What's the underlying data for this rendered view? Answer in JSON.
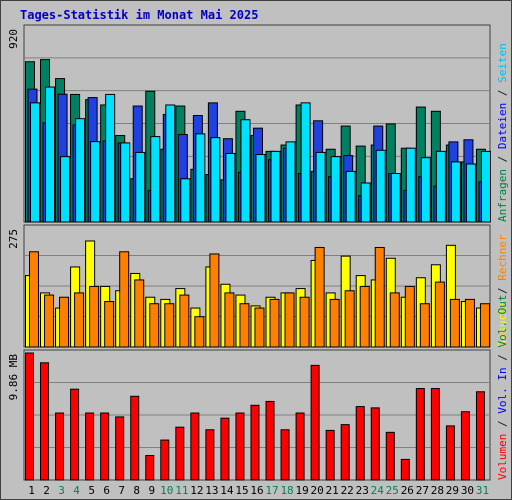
{
  "chart_data": {
    "type": "bar",
    "title": "Tages-Statistik im Monat Mai 2025",
    "days": [
      "1",
      "2",
      "3",
      "4",
      "5",
      "6",
      "7",
      "8",
      "9",
      "10",
      "11",
      "12",
      "13",
      "14",
      "15",
      "16",
      "17",
      "18",
      "19",
      "20",
      "21",
      "22",
      "23",
      "24",
      "25",
      "26",
      "27",
      "28",
      "29",
      "30",
      "31"
    ],
    "weekend_days": [
      "3",
      "4",
      "10",
      "11",
      "17",
      "18",
      "24",
      "25",
      "31"
    ],
    "panels": [
      {
        "id": "hits",
        "ymax_label": "920",
        "ymax": 920,
        "side_labels": [
          {
            "text": "Anfragen",
            "color": "#008040"
          },
          {
            "text": "Dateien",
            "color": "#0000ff"
          },
          {
            "text": "Seiten",
            "color": "#00c0e0"
          }
        ],
        "separators_color": "#404040",
        "series": [
          {
            "key": "Anfragen",
            "color": "#008060",
            "values": [
              760,
              770,
              680,
              605,
              580,
              555,
              410,
              205,
              620,
              345,
              550,
              250,
              225,
              200,
              525,
              410,
              335,
              365,
              555,
              240,
              345,
              455,
              360,
              365,
              465,
              350,
              545,
              525,
              365,
              285,
              345
            ]
          },
          {
            "key": "Dateien",
            "color": "#2040e0",
            "values": [
              630,
              470,
              606,
              460,
              590,
              385,
              375,
              550,
              150,
              510,
              415,
              505,
              565,
              395,
              235,
              445,
              295,
              350,
              230,
              480,
              215,
              315,
              125,
              455,
              230,
              150,
              215,
              170,
              380,
              390,
              190
            ]
          },
          {
            "key": "Seiten",
            "color": "#00e0ff",
            "values": [
              565,
              640,
              310,
              490,
              381,
              605,
              375,
              330,
              405,
              555,
              205,
              418,
              400,
              325,
              485,
              320,
              335,
              380,
              565,
              330,
              310,
              240,
              185,
              340,
              230,
              350,
              305,
              335,
              285,
              275,
              335
            ]
          }
        ]
      },
      {
        "id": "visits",
        "ymax_label": "275",
        "ymax": 275,
        "side_labels": [
          {
            "text": "Besuche",
            "color": "#ffff00"
          },
          {
            "text": "Rechner",
            "color": "#ff8000"
          }
        ],
        "series": [
          {
            "key": "Besuche",
            "color": "#ffff00",
            "values": [
              165,
              125,
              90,
              185,
              245,
              140,
              130,
              170,
              115,
              110,
              135,
              90,
              185,
              145,
              120,
              95,
              115,
              125,
              135,
              200,
              125,
              210,
              165,
              155,
              205,
              115,
              160,
              190,
              235,
              105,
              90
            ]
          },
          {
            "key": "Rechner",
            "color": "#ff8000",
            "values": [
              220,
              120,
              115,
              125,
              140,
              105,
              220,
              155,
              100,
              100,
              120,
              70,
              215,
              125,
              100,
              90,
              110,
              125,
              115,
              230,
              110,
              130,
              140,
              230,
              125,
              140,
              100,
              150,
              110,
              110,
              100
            ]
          }
        ]
      },
      {
        "id": "volume",
        "ymax_label": "9.86 MB",
        "ymax": 9.86,
        "side_labels": [
          {
            "text": "Volumen",
            "color": "#ff0000"
          },
          {
            "text": "Vol. In",
            "color": "#0000ff"
          },
          {
            "text": "Vol. Out",
            "color": "#008040"
          }
        ],
        "series": [
          {
            "key": "Volumen",
            "color": "#ff0000",
            "values": [
              9.86,
              9.1,
              5.2,
              7.05,
              5.2,
              5.2,
              4.9,
              6.5,
              1.9,
              3.1,
              4.1,
              5.2,
              3.9,
              4.8,
              5.2,
              5.8,
              6.1,
              3.9,
              5.2,
              8.9,
              3.85,
              4.3,
              5.7,
              5.6,
              3.7,
              1.6,
              7.1,
              7.1,
              4.2,
              5.3,
              6.85
            ]
          }
        ]
      }
    ]
  }
}
